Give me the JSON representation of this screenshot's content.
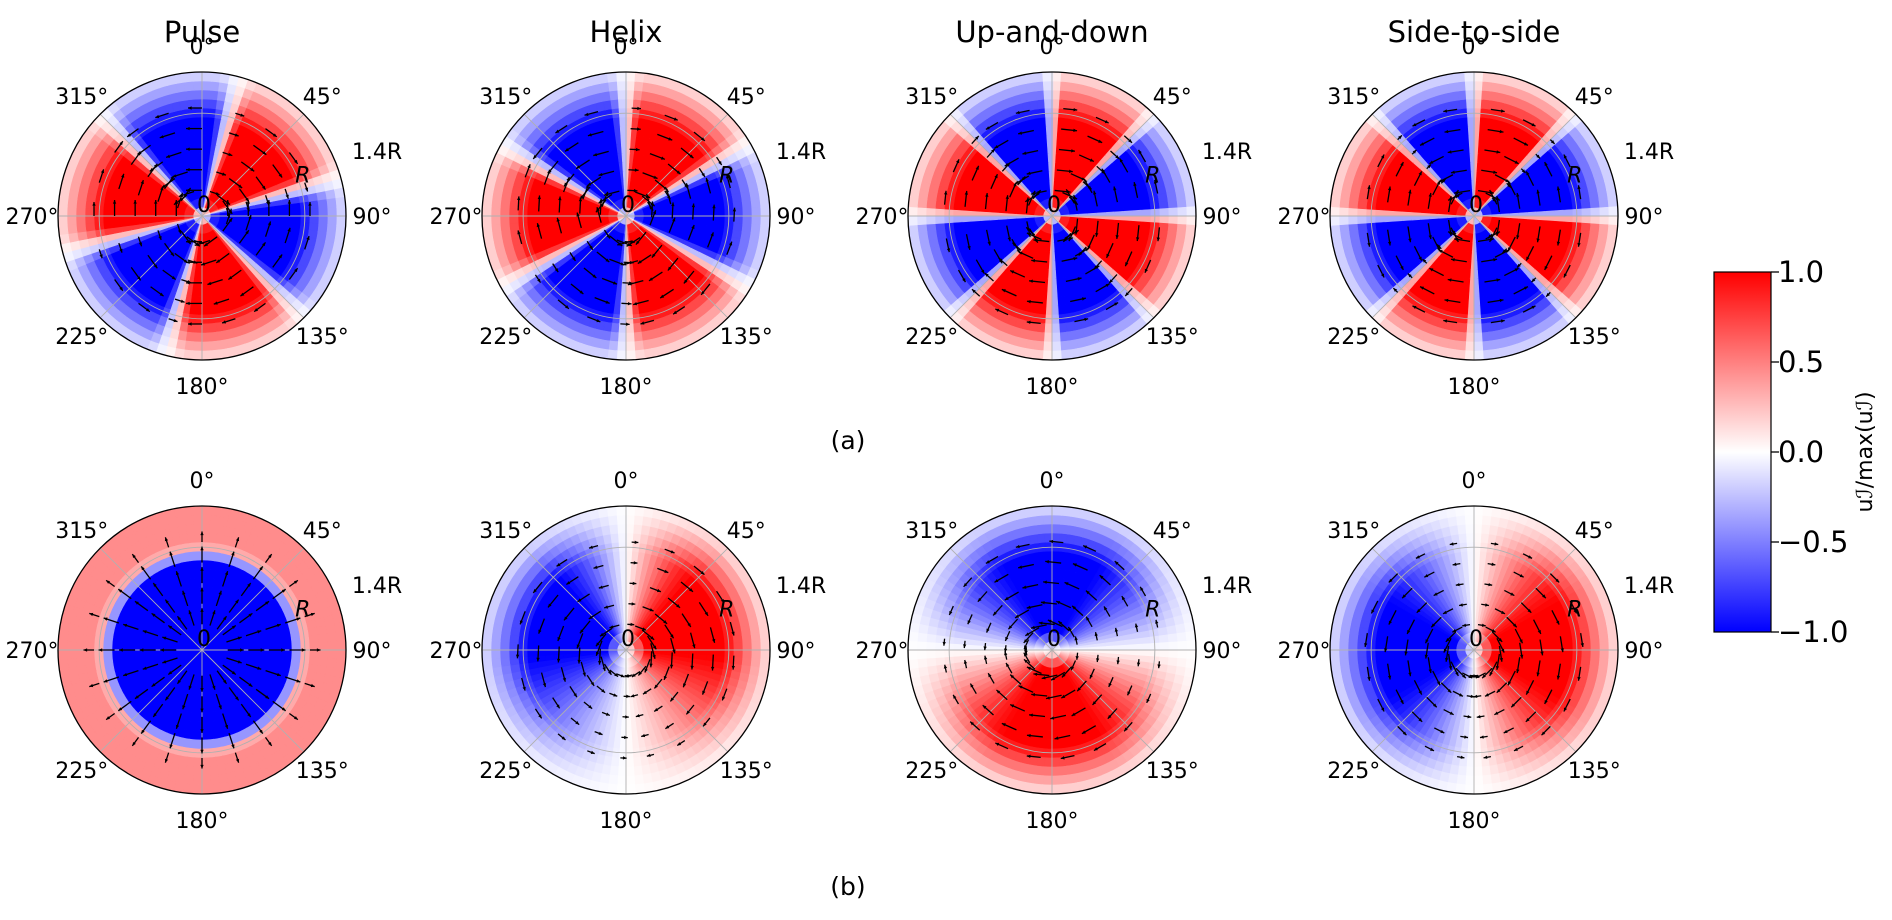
{
  "columns": [
    "Pulse",
    "Helix",
    "Up-and-down",
    "Side-to-side"
  ],
  "row_labels": [
    "(a)",
    "(b)"
  ],
  "angle_labels": [
    "0$^\\circ$",
    "45$^\\circ$",
    "90$^\\circ$",
    "135$^\\circ$",
    "180$^\\circ$",
    "225$^\\circ$",
    "270$^\\circ$",
    "315$^\\circ$"
  ],
  "angle_labels_display": [
    "0°",
    "45°",
    "90°",
    "135°",
    "180°",
    "225°",
    "270°",
    "315°"
  ],
  "radial_labels": [
    "0",
    "R",
    "1.4R"
  ],
  "colorbar": {
    "label": "uℐ/max(uℐ)",
    "ticks": [
      "1.0",
      "0.5",
      "0.0",
      "−0.5",
      "−1.0"
    ],
    "min_color": "#0000ff",
    "mid_color": "#ffffff",
    "max_color": "#ff0000"
  },
  "chart_data": {
    "type": "heatmap",
    "projection": "polar",
    "grid": true,
    "colormap": "bwr",
    "clim": [
      -1.0,
      1.0
    ],
    "theta_ticks_deg": [
      0,
      45,
      90,
      135,
      180,
      225,
      270,
      315
    ],
    "r_ticks": [
      "0",
      "R",
      "1.4R"
    ],
    "rmax": 1.4,
    "panels": [
      {
        "row": "(a)",
        "column": "Pulse",
        "pattern": "sectors",
        "n_sectors": 6,
        "first_sector_sign": 1,
        "phase_deg": 15
      },
      {
        "row": "(a)",
        "column": "Helix",
        "pattern": "sectors",
        "n_sectors": 6,
        "first_sector_sign": 1,
        "phase_deg": 0
      },
      {
        "row": "(a)",
        "column": "Up-and-down",
        "pattern": "sectors",
        "n_sectors": 8,
        "first_sector_sign": 1,
        "phase_deg": 0
      },
      {
        "row": "(a)",
        "column": "Side-to-side",
        "pattern": "sectors",
        "n_sectors": 8,
        "first_sector_sign": 1,
        "phase_deg": 0
      },
      {
        "row": "(b)",
        "column": "Pulse",
        "pattern": "radial",
        "inner_value": -1.0,
        "outer_value": 0.45
      },
      {
        "row": "(b)",
        "column": "Helix",
        "pattern": "dipole",
        "positive_direction_deg": 90,
        "rotation_deg": 25
      },
      {
        "row": "(b)",
        "column": "Up-and-down",
        "pattern": "dipole",
        "positive_direction_deg": 180,
        "rotation_deg": 0
      },
      {
        "row": "(b)",
        "column": "Side-to-side",
        "pattern": "dipole",
        "positive_direction_deg": 90,
        "rotation_deg": 0
      }
    ]
  }
}
